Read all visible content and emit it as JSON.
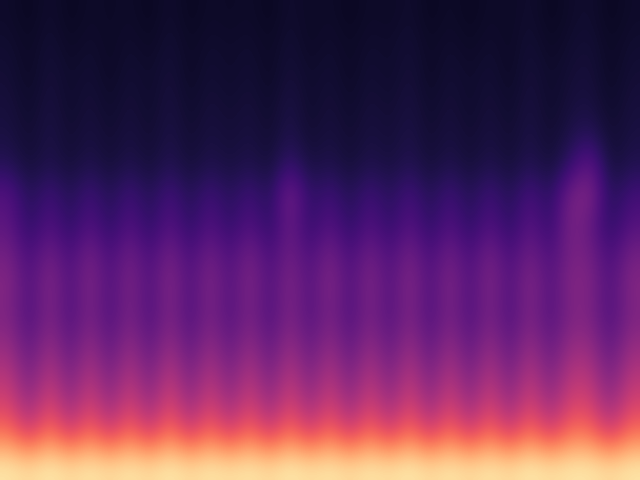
{
  "chart_data": {
    "type": "heatmap",
    "color": "magma",
    "tick_labels": false,
    "grid": false,
    "clim": [
      0,
      1
    ],
    "cells": [
      [
        0.08,
        0.06,
        0.09,
        0.06,
        0.08,
        0.07,
        0.08,
        0.06,
        0.09,
        0.06,
        0.08,
        0.07,
        0.08,
        0.06,
        0.09,
        0.07,
        0.08,
        0.06,
        0.08,
        0.07,
        0.09,
        0.06,
        0.08,
        0.06,
        0.08,
        0.07,
        0.09,
        0.06,
        0.08,
        0.09,
        0.06,
        0.08
      ],
      [
        0.09,
        0.07,
        0.1,
        0.07,
        0.09,
        0.07,
        0.09,
        0.07,
        0.1,
        0.07,
        0.09,
        0.08,
        0.09,
        0.07,
        0.1,
        0.07,
        0.09,
        0.07,
        0.09,
        0.08,
        0.1,
        0.07,
        0.09,
        0.07,
        0.09,
        0.07,
        0.1,
        0.07,
        0.09,
        0.1,
        0.07,
        0.09
      ],
      [
        0.1,
        0.07,
        0.11,
        0.08,
        0.1,
        0.07,
        0.1,
        0.08,
        0.11,
        0.07,
        0.1,
        0.08,
        0.1,
        0.07,
        0.11,
        0.08,
        0.1,
        0.07,
        0.1,
        0.08,
        0.11,
        0.07,
        0.1,
        0.08,
        0.1,
        0.07,
        0.11,
        0.08,
        0.1,
        0.11,
        0.07,
        0.1
      ],
      [
        0.11,
        0.08,
        0.12,
        0.08,
        0.11,
        0.08,
        0.11,
        0.08,
        0.12,
        0.08,
        0.11,
        0.09,
        0.11,
        0.08,
        0.13,
        0.08,
        0.11,
        0.08,
        0.11,
        0.09,
        0.12,
        0.08,
        0.11,
        0.08,
        0.11,
        0.08,
        0.12,
        0.08,
        0.11,
        0.12,
        0.08,
        0.11
      ],
      [
        0.12,
        0.09,
        0.13,
        0.09,
        0.12,
        0.09,
        0.12,
        0.09,
        0.13,
        0.09,
        0.12,
        0.1,
        0.12,
        0.09,
        0.14,
        0.09,
        0.12,
        0.09,
        0.12,
        0.1,
        0.13,
        0.09,
        0.12,
        0.09,
        0.12,
        0.09,
        0.13,
        0.09,
        0.13,
        0.16,
        0.09,
        0.12
      ],
      [
        0.15,
        0.1,
        0.14,
        0.1,
        0.14,
        0.1,
        0.14,
        0.1,
        0.15,
        0.1,
        0.14,
        0.11,
        0.14,
        0.1,
        0.2,
        0.11,
        0.14,
        0.1,
        0.14,
        0.11,
        0.15,
        0.1,
        0.14,
        0.1,
        0.14,
        0.1,
        0.15,
        0.1,
        0.18,
        0.3,
        0.1,
        0.14
      ],
      [
        0.26,
        0.14,
        0.22,
        0.14,
        0.22,
        0.14,
        0.22,
        0.14,
        0.23,
        0.14,
        0.22,
        0.15,
        0.22,
        0.14,
        0.36,
        0.16,
        0.22,
        0.14,
        0.22,
        0.15,
        0.23,
        0.14,
        0.22,
        0.14,
        0.22,
        0.14,
        0.24,
        0.15,
        0.34,
        0.38,
        0.14,
        0.22
      ],
      [
        0.28,
        0.16,
        0.26,
        0.16,
        0.26,
        0.16,
        0.26,
        0.16,
        0.27,
        0.16,
        0.26,
        0.17,
        0.26,
        0.16,
        0.32,
        0.17,
        0.27,
        0.16,
        0.26,
        0.17,
        0.27,
        0.16,
        0.26,
        0.16,
        0.26,
        0.16,
        0.28,
        0.17,
        0.36,
        0.3,
        0.16,
        0.26
      ],
      [
        0.34,
        0.22,
        0.34,
        0.22,
        0.35,
        0.22,
        0.34,
        0.22,
        0.35,
        0.22,
        0.34,
        0.23,
        0.35,
        0.22,
        0.34,
        0.23,
        0.35,
        0.22,
        0.34,
        0.23,
        0.35,
        0.22,
        0.34,
        0.22,
        0.35,
        0.22,
        0.34,
        0.23,
        0.35,
        0.34,
        0.22,
        0.34
      ],
      [
        0.38,
        0.24,
        0.39,
        0.24,
        0.38,
        0.24,
        0.37,
        0.24,
        0.39,
        0.24,
        0.38,
        0.25,
        0.38,
        0.24,
        0.38,
        0.25,
        0.39,
        0.24,
        0.38,
        0.25,
        0.39,
        0.24,
        0.38,
        0.24,
        0.38,
        0.24,
        0.39,
        0.25,
        0.38,
        0.37,
        0.24,
        0.38
      ],
      [
        0.36,
        0.24,
        0.37,
        0.24,
        0.36,
        0.24,
        0.36,
        0.24,
        0.37,
        0.24,
        0.36,
        0.25,
        0.36,
        0.24,
        0.37,
        0.25,
        0.36,
        0.24,
        0.36,
        0.25,
        0.37,
        0.24,
        0.36,
        0.24,
        0.36,
        0.24,
        0.37,
        0.25,
        0.36,
        0.36,
        0.24,
        0.36
      ],
      [
        0.42,
        0.28,
        0.43,
        0.28,
        0.42,
        0.28,
        0.42,
        0.28,
        0.43,
        0.28,
        0.42,
        0.29,
        0.42,
        0.28,
        0.43,
        0.29,
        0.42,
        0.28,
        0.42,
        0.29,
        0.43,
        0.28,
        0.42,
        0.28,
        0.42,
        0.28,
        0.43,
        0.29,
        0.42,
        0.42,
        0.28,
        0.42
      ],
      [
        0.5,
        0.34,
        0.51,
        0.34,
        0.5,
        0.34,
        0.5,
        0.34,
        0.52,
        0.34,
        0.5,
        0.35,
        0.5,
        0.34,
        0.51,
        0.35,
        0.5,
        0.34,
        0.5,
        0.35,
        0.51,
        0.34,
        0.5,
        0.34,
        0.5,
        0.34,
        0.51,
        0.35,
        0.5,
        0.5,
        0.34,
        0.5
      ],
      [
        0.58,
        0.42,
        0.6,
        0.42,
        0.58,
        0.42,
        0.58,
        0.42,
        0.6,
        0.42,
        0.58,
        0.43,
        0.58,
        0.42,
        0.59,
        0.43,
        0.58,
        0.42,
        0.58,
        0.43,
        0.59,
        0.42,
        0.58,
        0.42,
        0.58,
        0.42,
        0.59,
        0.43,
        0.58,
        0.58,
        0.42,
        0.58
      ],
      [
        0.72,
        0.58,
        0.74,
        0.58,
        0.72,
        0.58,
        0.72,
        0.58,
        0.74,
        0.58,
        0.72,
        0.59,
        0.72,
        0.58,
        0.73,
        0.59,
        0.72,
        0.58,
        0.72,
        0.59,
        0.73,
        0.58,
        0.72,
        0.58,
        0.72,
        0.58,
        0.73,
        0.59,
        0.72,
        0.72,
        0.58,
        0.72
      ],
      [
        0.95,
        0.92,
        0.96,
        0.92,
        0.95,
        0.92,
        0.95,
        0.92,
        0.96,
        0.92,
        0.95,
        0.93,
        0.95,
        0.92,
        0.96,
        0.93,
        0.95,
        0.92,
        0.95,
        0.93,
        0.96,
        0.92,
        0.95,
        0.92,
        0.95,
        0.92,
        0.96,
        0.93,
        0.95,
        0.95,
        0.92,
        0.95
      ]
    ]
  }
}
